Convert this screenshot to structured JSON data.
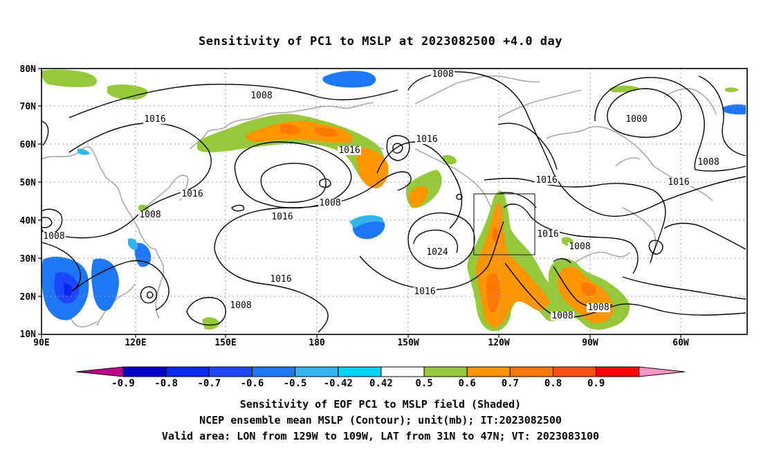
{
  "title": "Sensitivity of PC1 to MSLP at 2023082500 +4.0 day",
  "lat_labels": [
    "80N",
    "70N",
    "60N",
    "50N",
    "40N",
    "30N",
    "20N",
    "10N"
  ],
  "lon_labels": [
    "90E",
    "120E",
    "150E",
    "180",
    "150W",
    "120W",
    "90W",
    "60W"
  ],
  "contour_labels": [
    {
      "text": "1008"
    },
    {
      "text": "1008"
    },
    {
      "text": "1000"
    },
    {
      "text": "1016"
    },
    {
      "text": "1016"
    },
    {
      "text": "1016"
    },
    {
      "text": "1008"
    },
    {
      "text": "1016"
    },
    {
      "text": "1016"
    },
    {
      "text": "1008"
    },
    {
      "text": "1008"
    },
    {
      "text": "1016"
    },
    {
      "text": "1016"
    },
    {
      "text": "1016"
    },
    {
      "text": "1024"
    },
    {
      "text": "1008"
    },
    {
      "text": "1016"
    },
    {
      "text": "1008"
    },
    {
      "text": "1016"
    },
    {
      "text": "1008"
    },
    {
      "text": "1008"
    },
    {
      "text": "1008"
    }
  ],
  "colorbar": {
    "tick_labels": [
      "-0.9",
      "-0.8",
      "-0.7",
      "-0.6",
      "-0.5",
      "-0.42",
      "0.42",
      "0.5",
      "0.6",
      "0.7",
      "0.8",
      "0.9"
    ],
    "colors": [
      "#c0008a",
      "#0000c8",
      "#0a28f0",
      "#1e46ff",
      "#1e78f5",
      "#32b4f0",
      "#00d2ff",
      "#ffffff",
      "#96c83c",
      "#ff9600",
      "#ff7800",
      "#ff5014",
      "#ff0000",
      "#ff96c8"
    ]
  },
  "valid_box_color": "#333333",
  "captions": [
    "Sensitivity of EOF PC1 to MSLP field (Shaded)",
    "NCEP ensemble mean MSLP (Contour); unit(mb); IT:2023082500",
    "Valid area: LON from 129W to 109W, LAT from 31N to 47N; VT: 2023083100"
  ]
}
